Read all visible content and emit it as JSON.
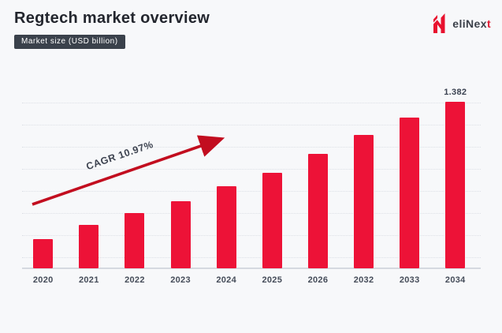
{
  "header": {
    "title": "Regtech market overview",
    "badge": "Market size (USD billion)"
  },
  "logo": {
    "text_main": "eliNex",
    "text_accent": "t",
    "accent_color": "#e11b33"
  },
  "chart_data": {
    "type": "bar",
    "title": "Regtech market overview",
    "subtitle": "Market size (USD billion)",
    "categories": [
      "2020",
      "2021",
      "2022",
      "2023",
      "2024",
      "2025",
      "2026",
      "2032",
      "2033",
      "2034"
    ],
    "values": [
      0.24,
      0.36,
      0.46,
      0.56,
      0.68,
      0.79,
      0.95,
      1.11,
      1.25,
      1.382
    ],
    "labeled_points": [
      {
        "category": "2034",
        "label": "1.382"
      }
    ],
    "annotation": {
      "text": "CAGR 10.97%"
    },
    "bar_color": "#ed1237",
    "arrow_color": "#c20d1f",
    "ylim": [
      0,
      1.45
    ],
    "xlabel": "",
    "ylabel": "",
    "grid": "dotted-horizontal",
    "legend": "none"
  }
}
